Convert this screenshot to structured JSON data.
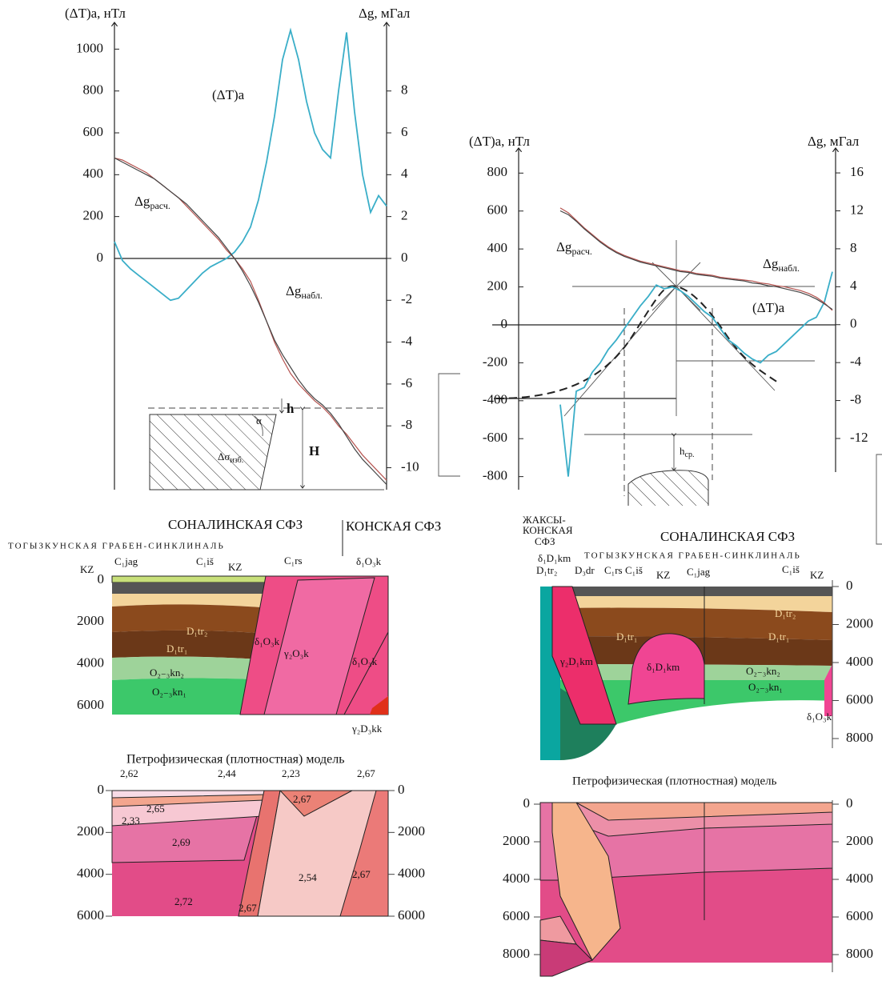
{
  "chart_data": [
    {
      "type": "line",
      "ylabel": "(ΔT)a, нТл",
      "y2label": "Δg, мГал",
      "ylim": [
        -1105,
        1120
      ],
      "yticks": [
        0,
        200,
        400,
        600,
        800,
        1000
      ],
      "y2lim": [
        -11.05,
        11.2
      ],
      "y2ticks": [
        8,
        6,
        4,
        2,
        0,
        -2,
        -4,
        -6,
        -8,
        -10
      ],
      "series": [
        {
          "name": "(ΔT)a",
          "color": "#3aaec8",
          "values": [
            80,
            -10,
            -50,
            -80,
            -110,
            -140,
            -170,
            -200,
            -190,
            -150,
            -110,
            -70,
            -40,
            -20,
            0,
            30,
            80,
            150,
            280,
            460,
            680,
            950,
            1090,
            950,
            750,
            600,
            520,
            480,
            800,
            1080,
            700,
            400,
            220,
            300,
            250
          ]
        },
        {
          "name": "Δg",
          "name_sub": "набл.",
          "color": "#b5534f",
          "axis": "y2",
          "values": [
            4.8,
            4.7,
            4.5,
            4.3,
            4.1,
            3.8,
            3.5,
            3.2,
            2.9,
            2.5,
            2.1,
            1.7,
            1.3,
            0.9,
            0.4,
            0,
            -0.5,
            -1.1,
            -2.0,
            -3.0,
            -4.0,
            -4.8,
            -5.5,
            -6.0,
            -6.4,
            -6.8,
            -7.1,
            -7.5,
            -8.0,
            -8.4,
            -8.9,
            -9.4,
            -9.8,
            -10.2,
            -10.6
          ]
        },
        {
          "name": "Δg",
          "name_sub": "расч.",
          "color": "#444444",
          "axis": "y2",
          "values": [
            4.8,
            4.6,
            4.4,
            4.2,
            4.0,
            3.8,
            3.5,
            3.2,
            2.9,
            2.6,
            2.2,
            1.8,
            1.4,
            1.0,
            0.5,
            0.0,
            -0.6,
            -1.3,
            -2.1,
            -3.0,
            -3.9,
            -4.6,
            -5.2,
            -5.8,
            -6.3,
            -6.7,
            -7.0,
            -7.4,
            -7.9,
            -8.5,
            -9.1,
            -9.6,
            -10.0,
            -10.4,
            -10.8
          ]
        }
      ],
      "inset": {
        "h": "h",
        "H": "H",
        "alpha": "α",
        "sigma": "Δσ",
        "sigma_sub": "изб."
      }
    },
    {
      "type": "line",
      "ylabel": "(ΔT)a, нТл",
      "y2label": "Δg, мГал",
      "ylim": [
        -869,
        911
      ],
      "yticks": [
        800,
        600,
        400,
        200,
        0,
        -200,
        -400,
        -600,
        -800
      ],
      "y2lim": [
        -17.4,
        18.2
      ],
      "y2ticks": [
        16,
        12,
        8,
        4,
        0,
        -4,
        -8,
        -12
      ],
      "series": [
        {
          "name": "(ΔT)a",
          "color": "#3aaec8",
          "values": [
            -420,
            -800,
            -350,
            -330,
            -250,
            -200,
            -130,
            -80,
            -20,
            40,
            100,
            150,
            210,
            190,
            200,
            180,
            150,
            110,
            70,
            40,
            -20,
            -80,
            -110,
            -150,
            -180,
            -200,
            -160,
            -140,
            -100,
            -60,
            -20,
            20,
            40,
            120,
            280
          ]
        },
        {
          "name": "Δg",
          "name_sub": "набл.",
          "color": "#b5534f",
          "axis": "y2",
          "values": [
            12.3,
            11.8,
            11.0,
            10.2,
            9.5,
            8.8,
            8.2,
            7.7,
            7.3,
            7.0,
            6.7,
            6.5,
            6.3,
            6.1,
            5.9,
            5.7,
            5.6,
            5.4,
            5.3,
            5.2,
            5.0,
            4.9,
            4.8,
            4.7,
            4.6,
            4.4,
            4.3,
            4.1,
            4.0,
            3.8,
            3.6,
            3.3,
            2.9,
            2.3,
            1.5
          ]
        },
        {
          "name": "Δg",
          "name_sub": "расч.",
          "color": "#444444",
          "axis": "y2",
          "values": [
            12.0,
            11.6,
            10.9,
            10.1,
            9.4,
            8.7,
            8.1,
            7.6,
            7.2,
            6.9,
            6.6,
            6.4,
            6.2,
            6.0,
            5.8,
            5.6,
            5.5,
            5.3,
            5.2,
            5.1,
            4.9,
            4.8,
            4.7,
            4.6,
            4.4,
            4.3,
            4.1,
            4.0,
            3.8,
            3.6,
            3.4,
            3.1,
            2.7,
            2.2,
            1.6
          ]
        }
      ],
      "inset": {
        "h": "h",
        "h_sub": "ср."
      }
    }
  ],
  "sections": [
    {
      "zone_left": "СОНАЛИНСКАЯ СФЗ",
      "zone_right": "КОНСКАЯ СФЗ",
      "structure": "ТОГЫЗКУНСКАЯ ГРАБЕН-СИНКЛИНАЛЬ",
      "ylim": [
        0,
        6000
      ],
      "yticks": [
        0,
        2000,
        4000,
        6000
      ],
      "labels": [
        "KZ",
        "C₁jag",
        "C₁iš",
        "KZ",
        "C₁rs",
        "δ₁O₃k",
        "D₁tr₂",
        "D₁tr₁",
        "δ₁O₃k",
        "γ₂O₃k",
        "δ₁O₃k",
        "O₂₋₃kn₂",
        "O₂₋₃kn₁",
        "γ₂D₃kk"
      ]
    },
    {
      "zone_left": [
        "ЖАКСЫ-",
        "КОНСКАЯ",
        "СФЗ"
      ],
      "zone_right": "СОНАЛИНСКАЯ СФЗ",
      "structure": "ТОГЫЗКУНСКАЯ ГРАБЕН-СИНКЛИНАЛЬ",
      "ylim": [
        0,
        8000
      ],
      "yticks": [
        0,
        2000,
        4000,
        6000,
        8000
      ],
      "labels": [
        "δ₁D₁km",
        "D₁tr₂",
        "D₃dr",
        "C₁rs",
        "C₁iš",
        "KZ",
        "C₁jag",
        "C₁iš",
        "KZ",
        "D₁tr₂",
        "D₁tr₁",
        "γ₂D₁km",
        "D₁tr₁",
        "δ₁D₁km",
        "O₂₋₃kn₂",
        "O₂₋₃kn₁",
        "δ₁O₃k"
      ]
    }
  ],
  "models": [
    {
      "title": "Петрофизическая (плотностная) модель",
      "ylim": [
        0,
        6000
      ],
      "yticks": [
        0,
        2000,
        4000,
        6000
      ],
      "densities": [
        "2,62",
        "2,44",
        "2,23",
        "2,67",
        "2,65",
        "2,33",
        "2,69",
        "2,72",
        "2,67",
        "2,54",
        "2,67",
        "2,67"
      ]
    },
    {
      "title": "Петрофизическая (плотностная) модель",
      "ylim": [
        0,
        8000
      ],
      "yticks": [
        0,
        2000,
        4000,
        6000,
        8000
      ]
    }
  ]
}
